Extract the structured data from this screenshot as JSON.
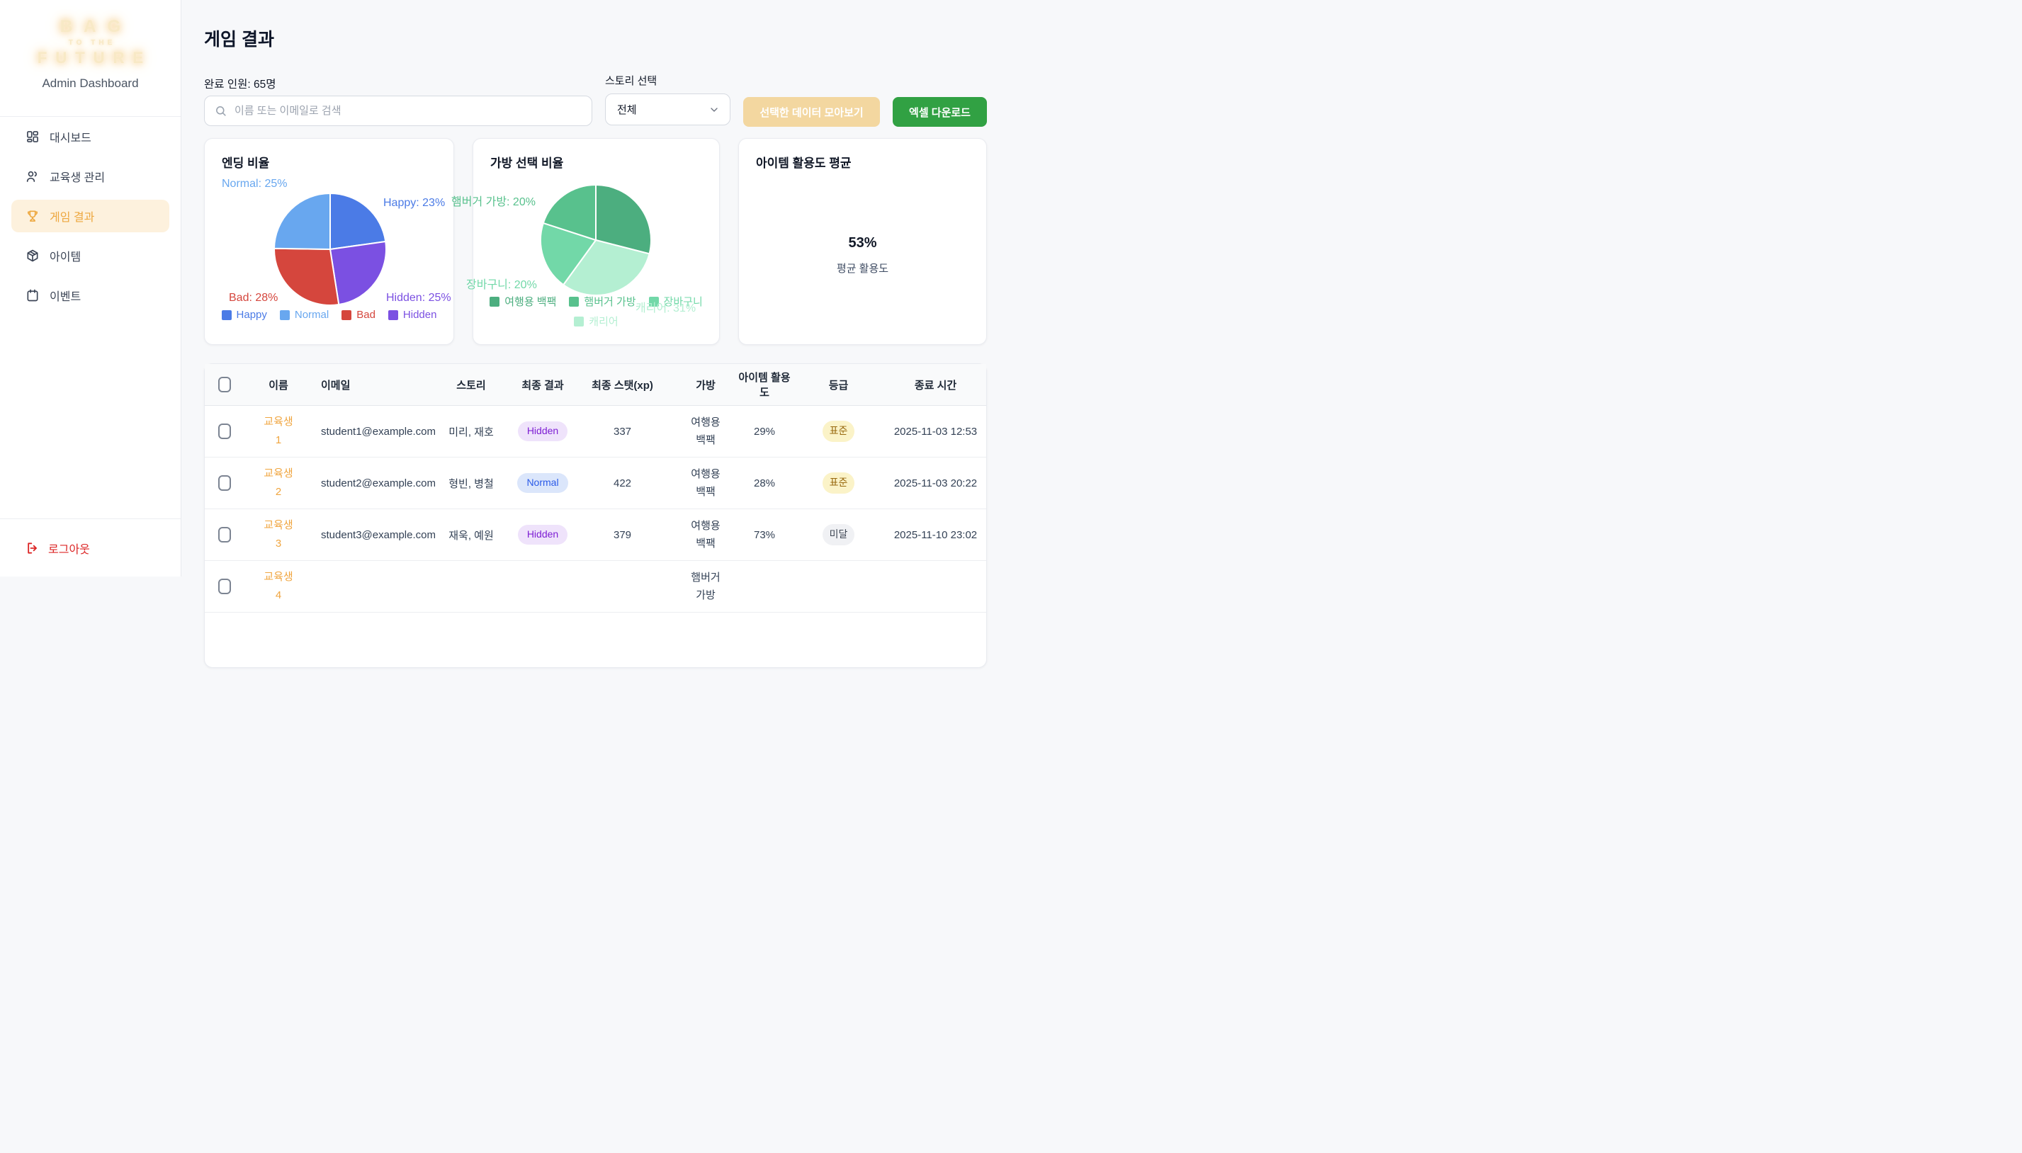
{
  "sidebar": {
    "logo": {
      "line1": "BAG",
      "line2": "TO THE",
      "line3": "FUTURE",
      "subtitle": "Admin Dashboard"
    },
    "items": [
      {
        "id": "dashboard",
        "label": "대시보드",
        "icon": "dashboard-grid-icon",
        "active": false
      },
      {
        "id": "students",
        "label": "교육생 관리",
        "icon": "users-icon",
        "active": false
      },
      {
        "id": "game-results",
        "label": "게임 결과",
        "icon": "trophy-icon",
        "active": true
      },
      {
        "id": "items",
        "label": "아이템",
        "icon": "package-icon",
        "active": false
      },
      {
        "id": "events",
        "label": "이벤트",
        "icon": "calendar-icon",
        "active": false
      }
    ],
    "logout_label": "로그아웃"
  },
  "header": {
    "title": "게임 결과",
    "completed_count": "완료 인원: 65명",
    "search_placeholder": "이름 또는 이메일로 검색",
    "story_select_label": "스토리 선택",
    "story_select_value": "전체",
    "collect_button": "선택한 데이터 모아보기",
    "excel_button": "엑셀 다운로드"
  },
  "colors": {
    "accent_orange": "#eda73e",
    "active_item_bg": "#fdf1dd",
    "link_orange": "#f0a53f",
    "green_button": "#31a143",
    "tan_button": "#f3d7a0",
    "logout_red": "#dc2626",
    "page_bg": "#f7f8fa"
  },
  "chart_data": [
    {
      "type": "pie",
      "title": "엔딩 비율",
      "slices_clockwise_from_top": [
        {
          "label": "Happy",
          "value": 23,
          "color": "#4b7be6"
        },
        {
          "label": "Hidden",
          "value": 25,
          "color": "#7b50e2"
        },
        {
          "label": "Bad",
          "value": 28,
          "color": "#d5463d"
        },
        {
          "label": "Normal",
          "value": 25,
          "color": "#68a7ef"
        }
      ],
      "legend": [
        {
          "label": "Happy",
          "color": "#4b7be6"
        },
        {
          "label": "Normal",
          "color": "#68a7ef"
        },
        {
          "label": "Bad",
          "color": "#d5463d"
        },
        {
          "label": "Hidden",
          "color": "#7b50e2"
        }
      ],
      "callouts": [
        {
          "text": "Normal: 25%",
          "color": "#68a7ef"
        },
        {
          "text": "Happy: 23%",
          "color": "#4b7be6"
        },
        {
          "text": "Bad: 28%",
          "color": "#d5463d"
        },
        {
          "text": "Hidden: 25%",
          "color": "#7b50e2"
        }
      ]
    },
    {
      "type": "pie",
      "title": "가방 선택 비율",
      "slices_clockwise_from_top": [
        {
          "label": "여행용 백팩",
          "value": 29,
          "color": "#4cae7f"
        },
        {
          "label": "캐리어",
          "value": 31,
          "color": "#b4efd2"
        },
        {
          "label": "장바구니",
          "value": 20,
          "color": "#72d8a8"
        },
        {
          "label": "햄버거 가방",
          "value": 20,
          "color": "#58c18d"
        }
      ],
      "legend": [
        {
          "label": "여행용 백팩",
          "color": "#4cae7f"
        },
        {
          "label": "햄버거 가방",
          "color": "#58c18d"
        },
        {
          "label": "장바구니",
          "color": "#72d8a8"
        },
        {
          "label": "캐리어",
          "color": "#b4efd2"
        }
      ],
      "callouts": [
        {
          "text": "햄버거 가방: 20%",
          "color": "#58c18d"
        },
        {
          "text": "장바구니: 20%",
          "color": "#72d8a8"
        },
        {
          "text": "캐리어: 31%",
          "color": "#b4efd2"
        }
      ]
    },
    {
      "type": "stat",
      "title": "아이템 활용도 평균",
      "value": "53%",
      "label": "평균 활용도"
    }
  ],
  "table": {
    "headers": [
      "이름",
      "이메일",
      "스토리",
      "최종 결과",
      "최종 스탯(xp)",
      "가방",
      "아이템 활용도",
      "등급",
      "종료 시간"
    ],
    "badge_colors": {
      "hidden": {
        "bg": "#efe3fb",
        "fg": "#7e1fd4"
      },
      "normal": {
        "bg": "#dbe6fb",
        "fg": "#2a5ae8"
      },
      "standard": {
        "bg": "#fbf3c8",
        "fg": "#996a10"
      },
      "under": {
        "bg": "#f0f1f4",
        "fg": "#3f4754"
      }
    },
    "rows": [
      {
        "name": "교육생 1",
        "email": "student1@example.com",
        "story": "미리, 재호",
        "result": {
          "text": "Hidden",
          "type": "hidden"
        },
        "xp": "337",
        "bag": "여행용 백팩",
        "usage": "29%",
        "grade": {
          "text": "표준",
          "type": "standard"
        },
        "ended_at": "2025-11-03 12:53"
      },
      {
        "name": "교육생 2",
        "email": "student2@example.com",
        "story": "형빈, 병철",
        "result": {
          "text": "Normal",
          "type": "normal"
        },
        "xp": "422",
        "bag": "여행용 백팩",
        "usage": "28%",
        "grade": {
          "text": "표준",
          "type": "standard"
        },
        "ended_at": "2025-11-03 20:22"
      },
      {
        "name": "교육생 3",
        "email": "student3@example.com",
        "story": "재욱, 예원",
        "result": {
          "text": "Hidden",
          "type": "hidden"
        },
        "xp": "379",
        "bag": "여행용 백팩",
        "usage": "73%",
        "grade": {
          "text": "미달",
          "type": "under"
        },
        "ended_at": "2025-11-10 23:02"
      },
      {
        "name": "교육생 4",
        "email": "",
        "story": "",
        "result": null,
        "xp": "",
        "bag": "햄버거 가방",
        "usage": "",
        "grade": null,
        "ended_at": ""
      }
    ]
  }
}
